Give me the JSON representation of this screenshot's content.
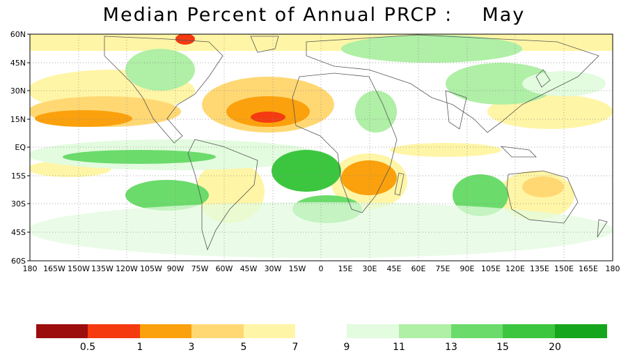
{
  "title": "Median Percent of Annual PRCP :    May",
  "map": {
    "lat_labels": [
      "60N",
      "45N",
      "30N",
      "15N",
      "EQ",
      "15S",
      "30S",
      "45S",
      "60S"
    ],
    "lon_labels": [
      "180",
      "165W",
      "150W",
      "135W",
      "120W",
      "105W",
      "90W",
      "75W",
      "60W",
      "45W",
      "30W",
      "15W",
      "0",
      "15E",
      "30E",
      "45E",
      "60E",
      "75E",
      "90E",
      "105E",
      "120E",
      "135E",
      "150E",
      "165E",
      "180"
    ],
    "grid": true
  },
  "colorbar": {
    "dry_colors": [
      "#9c0d0d",
      "#f53a10",
      "#fba10d",
      "#ffd874",
      "#fff5a6"
    ],
    "wet_colors": [
      "#e3fbdf",
      "#afefa6",
      "#6bdb6b",
      "#3cc63f",
      "#16a61d"
    ],
    "labels": [
      "0.5",
      "1",
      "3",
      "5",
      "7",
      "9",
      "11",
      "13",
      "15",
      "20"
    ]
  }
}
